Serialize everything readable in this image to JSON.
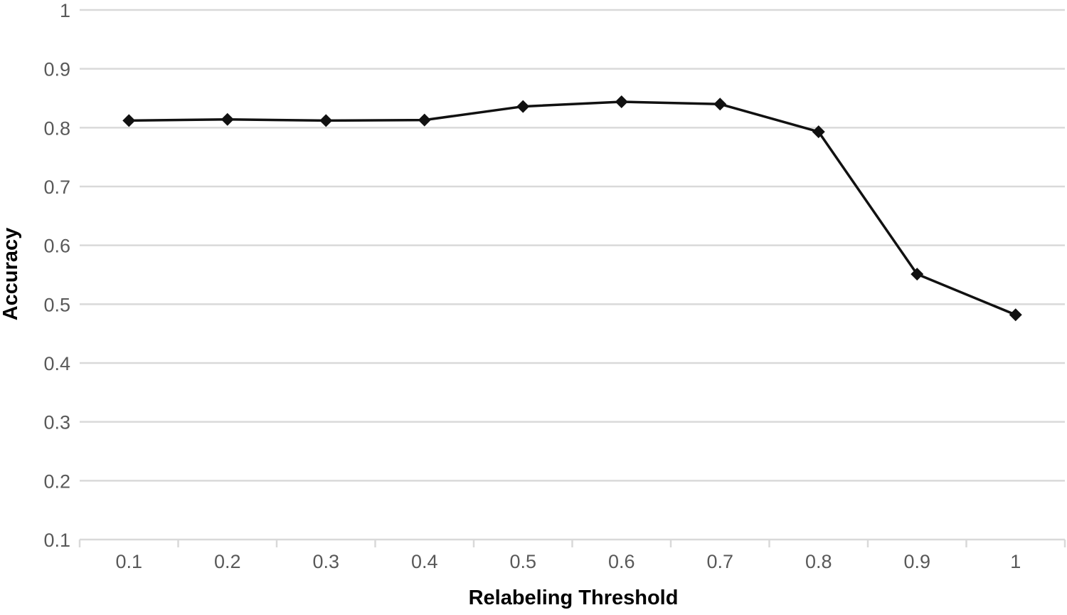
{
  "chart_data": {
    "type": "line",
    "title": "",
    "xlabel": "Relabeling Threshold",
    "ylabel": "Accuracy",
    "categories": [
      0.1,
      0.2,
      0.3,
      0.4,
      0.5,
      0.6,
      0.7,
      0.8,
      0.9,
      1.0
    ],
    "x_tick_labels": [
      "0.1",
      "0.2",
      "0.3",
      "0.4",
      "0.5",
      "0.6",
      "0.7",
      "0.8",
      "0.9",
      "1"
    ],
    "series": [
      {
        "name": "Accuracy",
        "values": [
          0.812,
          0.814,
          0.812,
          0.813,
          0.836,
          0.844,
          0.84,
          0.793,
          0.551,
          0.482
        ]
      }
    ],
    "ylim": [
      0.1,
      1.0
    ],
    "y_ticks": [
      1.0,
      0.9,
      0.8,
      0.7,
      0.6,
      0.5,
      0.4,
      0.3,
      0.2,
      0.1
    ],
    "y_tick_labels": [
      "1",
      "0.9",
      "0.8",
      "0.7",
      "0.6",
      "0.5",
      "0.4",
      "0.3",
      "0.2",
      "0.1"
    ],
    "grid": true,
    "legend_position": "none",
    "marker": "diamond",
    "colors": {
      "line": "#111111",
      "marker": "#111111",
      "grid": "#d9d9d9",
      "axis": "#d9d9d9",
      "tick_label": "#595959",
      "axis_title": "#000000",
      "background": "#ffffff"
    }
  }
}
